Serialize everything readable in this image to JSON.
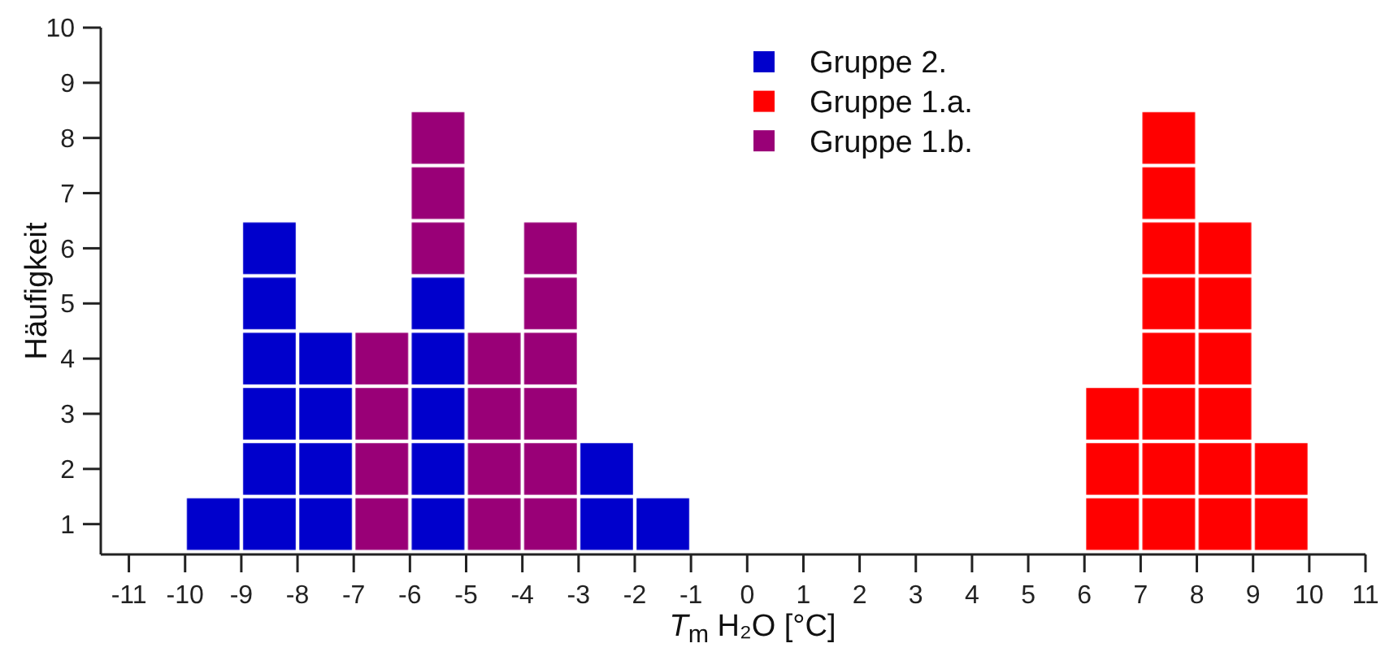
{
  "chart_data": {
    "type": "bar",
    "xlabel": "T$_{m}$ H₂O [°C]",
    "ylabel": "Häufigkeit",
    "x": [
      -9.5,
      -8.5,
      -7.5,
      -6.5,
      -5.5,
      -4.5,
      -3.5,
      -2.5,
      -1.5,
      6.5,
      7.5,
      8.5,
      9.5
    ],
    "stacked": true,
    "series": [
      {
        "name": "Gruppe 2.",
        "color": "#0000cc",
        "values": [
          1,
          6,
          4,
          null,
          5,
          null,
          null,
          2,
          1,
          null,
          null,
          null,
          null
        ]
      },
      {
        "name": "Gruppe 1.a.",
        "color": "#ff0000",
        "values": [
          null,
          null,
          null,
          null,
          null,
          null,
          null,
          null,
          null,
          3,
          8,
          6,
          2
        ]
      },
      {
        "name": "Gruppe 1.b.",
        "color": "#990077",
        "values": [
          null,
          null,
          null,
          4,
          3,
          4,
          6,
          null,
          null,
          null,
          null,
          null,
          null
        ]
      }
    ],
    "xlim": [
      -11.5,
      11
    ],
    "xticks": [
      -11,
      -10,
      -9,
      -8,
      -7,
      -6,
      -5,
      -4,
      -3,
      -2,
      -1,
      0,
      1,
      2,
      3,
      4,
      5,
      6,
      7,
      8,
      9,
      10,
      11
    ],
    "ylim": [
      -0.05,
      9.5
    ],
    "yticks": [
      {
        "value": 0.5,
        "label": "1"
      },
      {
        "value": 1.5,
        "label": "2"
      },
      {
        "value": 2.5,
        "label": "3"
      },
      {
        "value": 3.5,
        "label": "4"
      },
      {
        "value": 4.5,
        "label": "5"
      },
      {
        "value": 5.5,
        "label": "6"
      },
      {
        "value": 6.5,
        "label": "7"
      },
      {
        "value": 7.5,
        "label": "8"
      },
      {
        "value": 8.5,
        "label": "9"
      },
      {
        "value": 9.5,
        "label": "10"
      }
    ],
    "legend": "top"
  }
}
